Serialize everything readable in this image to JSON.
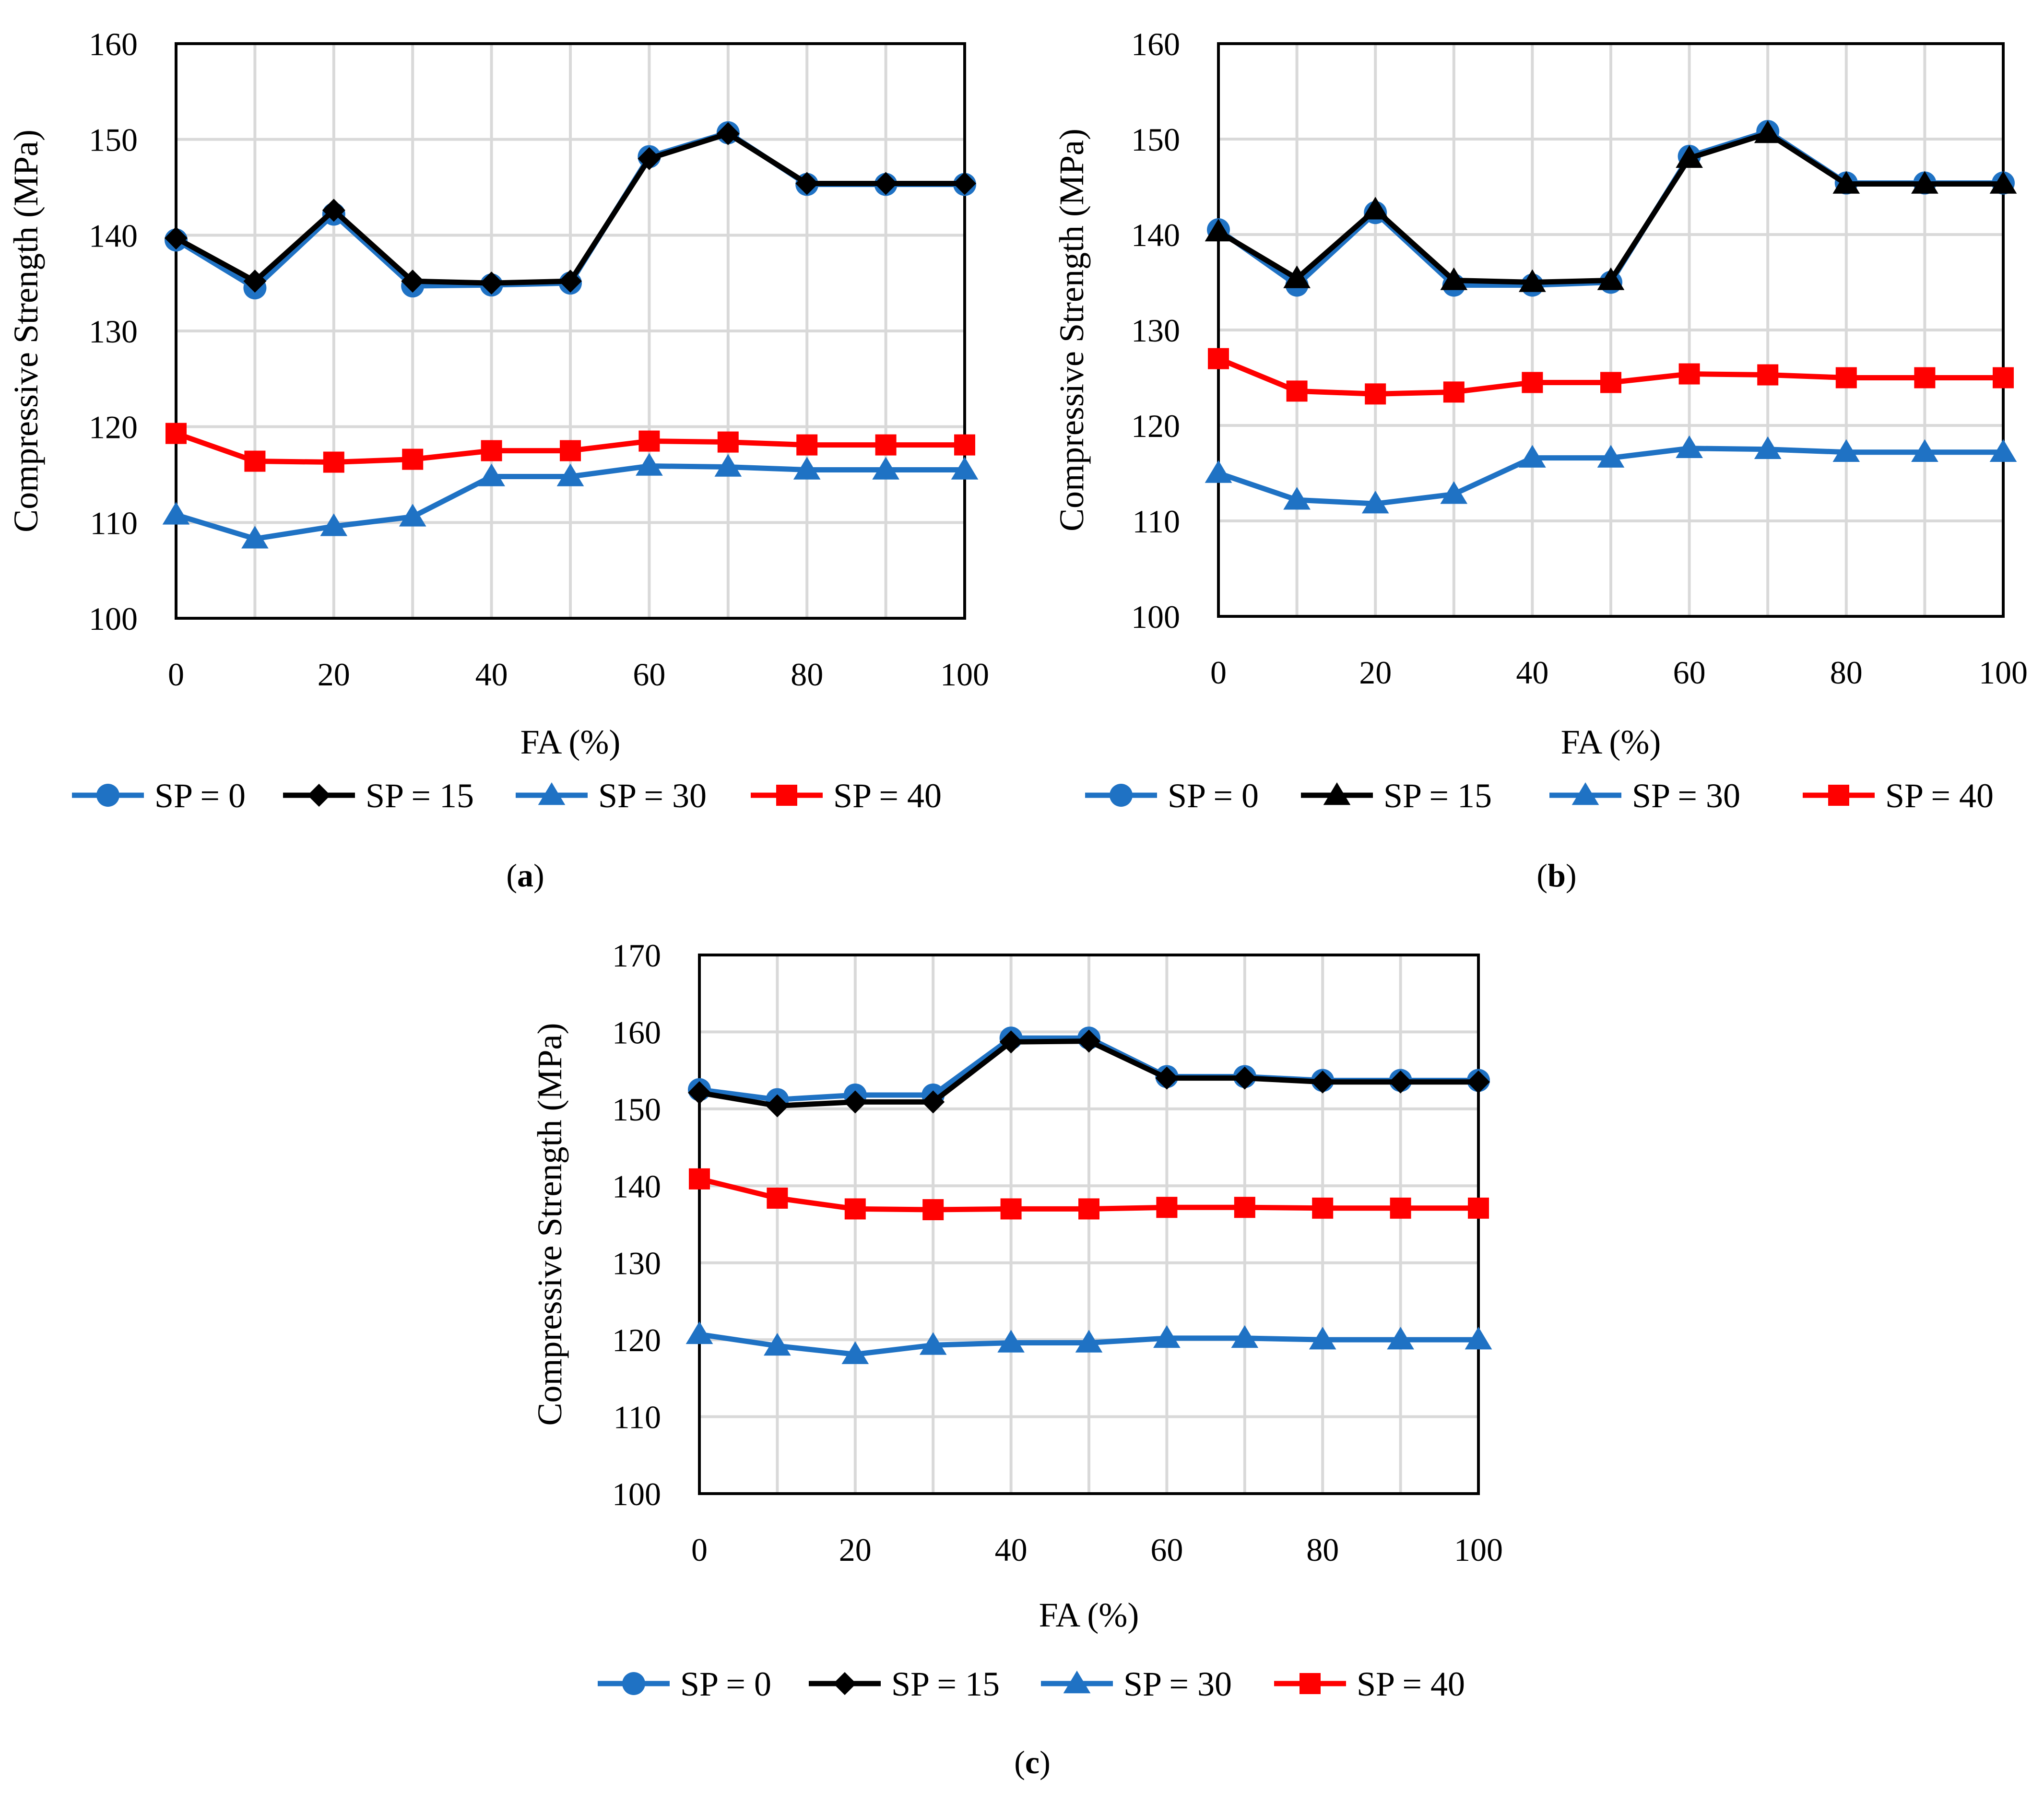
{
  "chart_data": [
    {
      "type": "line",
      "panel": "(a)",
      "caption_letter": "a",
      "xlabel": "FA (%)",
      "ylabel": "Compressive Strength (MPa)",
      "xlim": [
        0,
        100
      ],
      "ylim": [
        100,
        160
      ],
      "xticks": [
        0,
        20,
        40,
        60,
        80,
        100
      ],
      "yticks": [
        100,
        110,
        120,
        130,
        140,
        150,
        160
      ],
      "grid": true,
      "legend_position": "bottom",
      "x": [
        0,
        10,
        20,
        30,
        40,
        50,
        60,
        70,
        80,
        90,
        100
      ],
      "series": [
        {
          "name": "SP = 0",
          "color": "#1f72c4",
          "marker": "circle",
          "values": [
            139.5,
            134.5,
            142.2,
            134.7,
            134.8,
            135.0,
            148.2,
            150.7,
            145.3,
            145.3,
            145.3
          ]
        },
        {
          "name": "SP = 15",
          "color": "#000000",
          "marker": "diamond",
          "values": [
            139.7,
            135.2,
            142.6,
            135.2,
            135.0,
            135.2,
            148.0,
            150.6,
            145.4,
            145.4,
            145.4
          ]
        },
        {
          "name": "SP = 30",
          "color": "#1f72c4",
          "marker": "triangle",
          "values": [
            110.8,
            108.3,
            109.6,
            110.6,
            114.8,
            114.8,
            115.9,
            115.8,
            115.5,
            115.5,
            115.5
          ]
        },
        {
          "name": "SP = 40",
          "color": "#ff0000",
          "marker": "square",
          "values": [
            119.3,
            116.4,
            116.3,
            116.6,
            117.5,
            117.5,
            118.5,
            118.4,
            118.1,
            118.1,
            118.1
          ]
        }
      ]
    },
    {
      "type": "line",
      "panel": "(b)",
      "caption_letter": "b",
      "xlabel": "FA (%)",
      "ylabel": "Compressive Strength (MPa)",
      "xlim": [
        0,
        100
      ],
      "ylim": [
        100,
        160
      ],
      "xticks": [
        0,
        20,
        40,
        60,
        80,
        100
      ],
      "yticks": [
        100,
        110,
        120,
        130,
        140,
        150,
        160
      ],
      "grid": true,
      "legend_position": "bottom",
      "x": [
        0,
        10,
        20,
        30,
        40,
        50,
        60,
        70,
        80,
        90,
        100
      ],
      "series": [
        {
          "name": "SP = 0",
          "color": "#1f72c4",
          "marker": "circle",
          "values": [
            140.5,
            134.7,
            142.3,
            134.7,
            134.7,
            135.0,
            148.2,
            150.8,
            145.4,
            145.4,
            145.4
          ]
        },
        {
          "name": "SP = 15",
          "color": "#000000",
          "marker": "triangle",
          "values": [
            140.3,
            135.4,
            142.6,
            135.2,
            135.0,
            135.2,
            148.0,
            150.6,
            145.3,
            145.3,
            145.3
          ]
        },
        {
          "name": "SP = 30",
          "color": "#1f72c4",
          "marker": "triangle",
          "values": [
            115.0,
            112.2,
            111.8,
            112.8,
            116.6,
            116.6,
            117.6,
            117.5,
            117.2,
            117.2,
            117.2
          ]
        },
        {
          "name": "SP = 40",
          "color": "#ff0000",
          "marker": "square",
          "values": [
            127.0,
            123.6,
            123.3,
            123.5,
            124.5,
            124.5,
            125.4,
            125.3,
            125.0,
            125.0,
            125.0
          ]
        }
      ]
    },
    {
      "type": "line",
      "panel": "(c)",
      "caption_letter": "c",
      "xlabel": "FA (%)",
      "ylabel": "Compressive Strength (MPa)",
      "xlim": [
        0,
        100
      ],
      "ylim": [
        100,
        170
      ],
      "xticks": [
        0,
        20,
        40,
        60,
        80,
        100
      ],
      "yticks": [
        100,
        110,
        120,
        130,
        140,
        150,
        160,
        170
      ],
      "grid": true,
      "legend_position": "bottom",
      "x": [
        0,
        10,
        20,
        30,
        40,
        50,
        60,
        70,
        80,
        90,
        100
      ],
      "series": [
        {
          "name": "SP = 0",
          "color": "#1f72c4",
          "marker": "circle",
          "values": [
            152.5,
            151.2,
            151.8,
            151.8,
            159.2,
            159.2,
            154.2,
            154.2,
            153.7,
            153.7,
            153.7
          ]
        },
        {
          "name": "SP = 15",
          "color": "#000000",
          "marker": "diamond",
          "values": [
            152.1,
            150.4,
            150.9,
            150.9,
            158.7,
            158.8,
            154.0,
            154.0,
            153.5,
            153.5,
            153.5
          ]
        },
        {
          "name": "SP = 30",
          "color": "#1f72c4",
          "marker": "triangle",
          "values": [
            120.7,
            119.2,
            118.1,
            119.3,
            119.6,
            119.6,
            120.2,
            120.2,
            120.0,
            120.0,
            120.0
          ]
        },
        {
          "name": "SP = 40",
          "color": "#ff0000",
          "marker": "square",
          "values": [
            140.9,
            138.4,
            137.0,
            136.9,
            137.0,
            137.0,
            137.2,
            137.2,
            137.1,
            137.1,
            137.1
          ]
        }
      ]
    }
  ]
}
